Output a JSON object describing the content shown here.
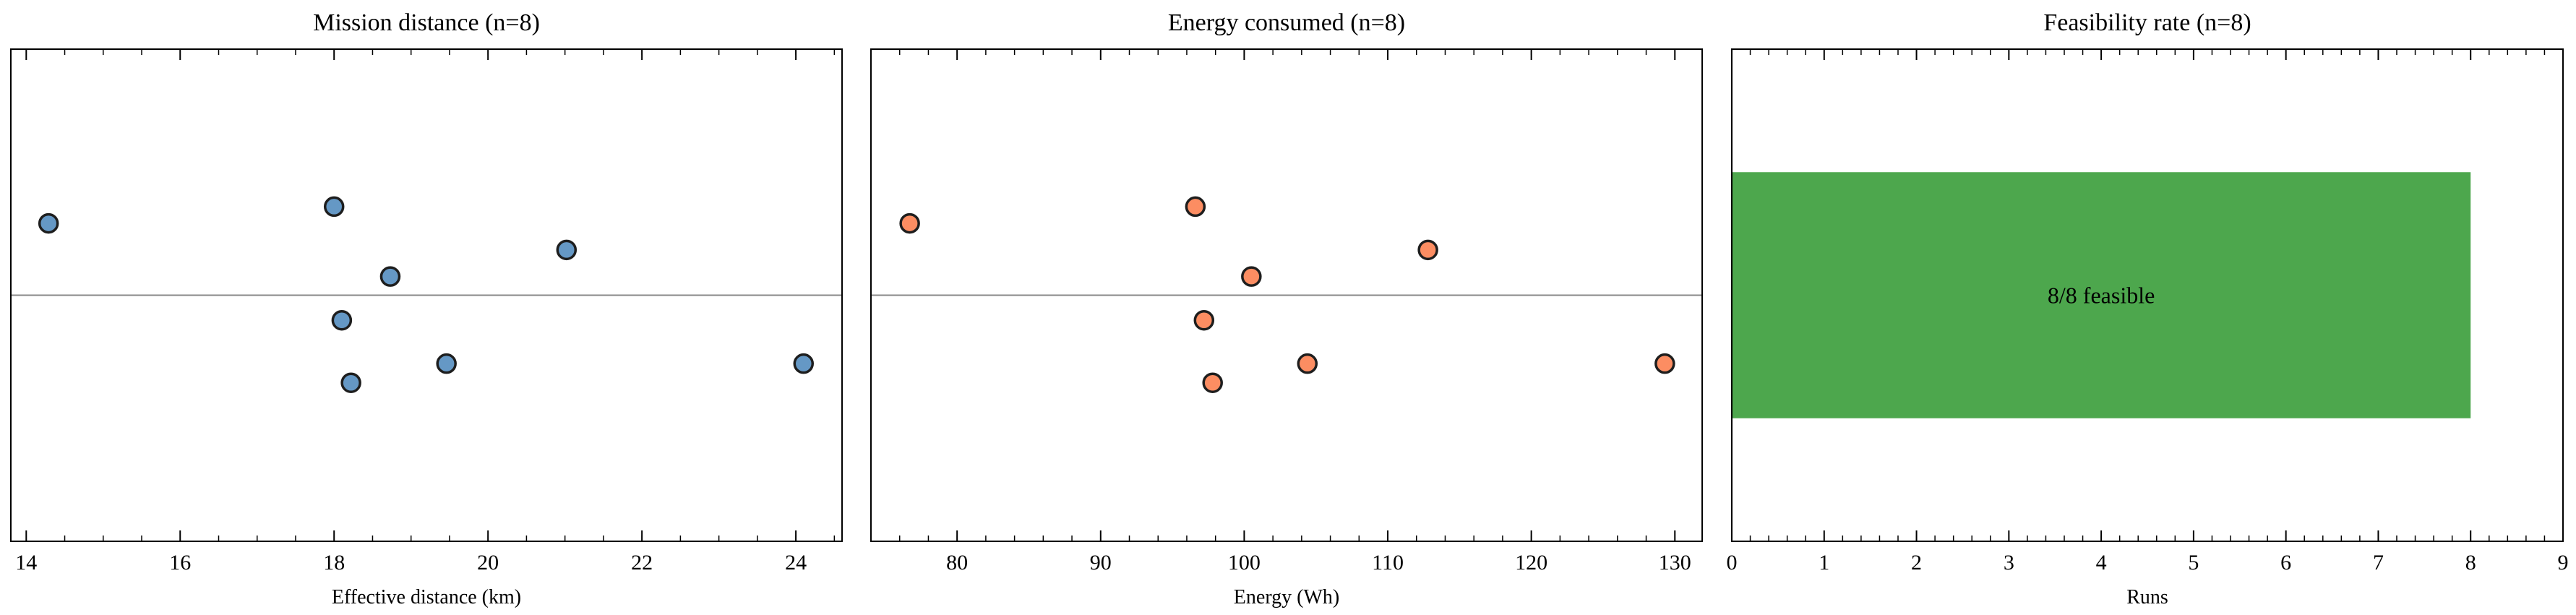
{
  "chart_data": [
    {
      "type": "scatter",
      "title": "Mission distance (n=8)",
      "xlabel": "Effective distance (km)",
      "ylabel": "",
      "xlim": [
        13.8,
        24.6
      ],
      "ylim": [
        -0.5,
        0.5
      ],
      "xticks": [
        14,
        16,
        18,
        20,
        22,
        24
      ],
      "xtick_labels": [
        "14",
        "16",
        "18",
        "20",
        "22",
        "24"
      ],
      "minor_step": 0.5,
      "reference_line_y": 0,
      "color": "#6598c5",
      "points": [
        {
          "x": 14.29,
          "y": 0.146
        },
        {
          "x": 18.0,
          "y": 0.18
        },
        {
          "x": 18.73,
          "y": 0.038
        },
        {
          "x": 18.1,
          "y": -0.051
        },
        {
          "x": 18.22,
          "y": -0.178
        },
        {
          "x": 19.46,
          "y": -0.139
        },
        {
          "x": 21.02,
          "y": 0.092
        },
        {
          "x": 24.1,
          "y": -0.139
        }
      ]
    },
    {
      "type": "scatter",
      "title": "Energy consumed (n=8)",
      "xlabel": "Energy (Wh)",
      "ylabel": "",
      "xlim": [
        74.0,
        131.9
      ],
      "ylim": [
        -0.5,
        0.5
      ],
      "xticks": [
        80,
        90,
        100,
        110,
        120,
        130
      ],
      "xtick_labels": [
        "80",
        "90",
        "100",
        "110",
        "120",
        "130"
      ],
      "minor_step": 2,
      "reference_line_y": 0,
      "color": "#fc8d62",
      "points": [
        {
          "x": 76.7,
          "y": 0.146
        },
        {
          "x": 96.6,
          "y": 0.18
        },
        {
          "x": 100.5,
          "y": 0.038
        },
        {
          "x": 97.2,
          "y": -0.051
        },
        {
          "x": 97.8,
          "y": -0.178
        },
        {
          "x": 104.4,
          "y": -0.139
        },
        {
          "x": 112.8,
          "y": 0.092
        },
        {
          "x": 129.3,
          "y": -0.139
        }
      ]
    },
    {
      "type": "bar",
      "orientation": "horizontal",
      "title": "Feasibility rate (n=8)",
      "xlabel": "Runs",
      "ylabel": "",
      "xlim": [
        0,
        9
      ],
      "ylim": [
        -0.5,
        0.5
      ],
      "xticks": [
        0,
        1,
        2,
        3,
        4,
        5,
        6,
        7,
        8,
        9
      ],
      "xtick_labels": [
        "0",
        "1",
        "2",
        "3",
        "4",
        "5",
        "6",
        "7",
        "8",
        "9"
      ],
      "minor_step": 0.2,
      "color": "#4da74d",
      "bars": [
        {
          "value": 8,
          "label": "8/8 feasible",
          "center": 0,
          "height": 0.5
        }
      ]
    }
  ]
}
